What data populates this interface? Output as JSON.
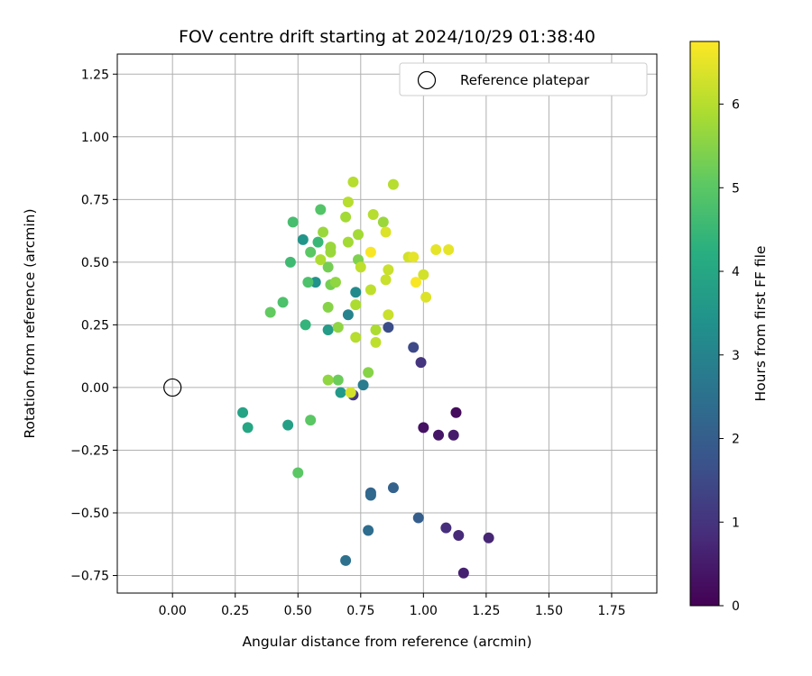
{
  "chart_data": {
    "type": "scatter",
    "title": "FOV centre drift starting at 2024/10/29 01:38:40",
    "xlabel": "Angular distance from reference (arcmin)",
    "ylabel": "Rotation from reference (arcmin)",
    "xlim": [
      -0.22,
      1.93
    ],
    "ylim": [
      -0.82,
      1.33
    ],
    "xticks": [
      0.0,
      0.25,
      0.5,
      0.75,
      1.0,
      1.25,
      1.5,
      1.75
    ],
    "xtick_labels": [
      "0.00",
      "0.25",
      "0.50",
      "0.75",
      "1.00",
      "1.25",
      "1.50",
      "1.75"
    ],
    "yticks": [
      -0.75,
      -0.5,
      -0.25,
      0.0,
      0.25,
      0.5,
      0.75,
      1.0,
      1.25
    ],
    "ytick_labels": [
      "−0.75",
      "−0.50",
      "−0.25",
      "0.00",
      "0.25",
      "0.50",
      "0.75",
      "1.00",
      "1.25"
    ],
    "grid": true,
    "legend": {
      "placement": "top-right",
      "entries": [
        "Reference platepar"
      ]
    },
    "reference_point": {
      "name": "Reference platepar",
      "x": 0.0,
      "y": 0.0
    },
    "colorbar": {
      "label": "Hours from first FF file",
      "colormap": "viridis",
      "range": [
        0,
        6.75
      ],
      "ticks": [
        0,
        1,
        2,
        3,
        4,
        5,
        6
      ],
      "tick_labels": [
        "0",
        "1",
        "2",
        "3",
        "4",
        "5",
        "6"
      ]
    },
    "series": [
      {
        "points": [
          {
            "x": 1.13,
            "y": -0.1,
            "c": 0.2
          },
          {
            "x": 1.0,
            "y": -0.16,
            "c": 0.3
          },
          {
            "x": 1.06,
            "y": -0.19,
            "c": 0.4
          },
          {
            "x": 1.12,
            "y": -0.19,
            "c": 0.5
          },
          {
            "x": 1.16,
            "y": -0.74,
            "c": 0.6
          },
          {
            "x": 1.26,
            "y": -0.6,
            "c": 0.7
          },
          {
            "x": 1.14,
            "y": -0.59,
            "c": 0.8
          },
          {
            "x": 1.09,
            "y": -0.56,
            "c": 0.9
          },
          {
            "x": 0.99,
            "y": 0.1,
            "c": 1.0
          },
          {
            "x": 0.72,
            "y": -0.03,
            "c": 1.1
          },
          {
            "x": 0.96,
            "y": 0.16,
            "c": 1.5
          },
          {
            "x": 0.86,
            "y": 0.24,
            "c": 1.6
          },
          {
            "x": 0.98,
            "y": -0.52,
            "c": 2.0
          },
          {
            "x": 0.88,
            "y": -0.4,
            "c": 2.1
          },
          {
            "x": 0.79,
            "y": -0.42,
            "c": 2.2
          },
          {
            "x": 0.79,
            "y": -0.43,
            "c": 2.3
          },
          {
            "x": 0.78,
            "y": -0.57,
            "c": 2.4
          },
          {
            "x": 0.69,
            "y": -0.69,
            "c": 2.5
          },
          {
            "x": 0.76,
            "y": 0.01,
            "c": 2.8
          },
          {
            "x": 0.7,
            "y": 0.29,
            "c": 3.0
          },
          {
            "x": 0.73,
            "y": 0.38,
            "c": 3.2
          },
          {
            "x": 0.57,
            "y": 0.42,
            "c": 3.4
          },
          {
            "x": 0.52,
            "y": 0.59,
            "c": 3.5
          },
          {
            "x": 0.67,
            "y": -0.02,
            "c": 3.6
          },
          {
            "x": 0.62,
            "y": 0.23,
            "c": 3.7
          },
          {
            "x": 0.46,
            "y": -0.15,
            "c": 3.8
          },
          {
            "x": 0.28,
            "y": -0.1,
            "c": 3.9
          },
          {
            "x": 0.3,
            "y": -0.16,
            "c": 4.0
          },
          {
            "x": 0.53,
            "y": 0.25,
            "c": 4.4
          },
          {
            "x": 0.58,
            "y": 0.58,
            "c": 4.5
          },
          {
            "x": 0.47,
            "y": 0.5,
            "c": 4.6
          },
          {
            "x": 0.48,
            "y": 0.66,
            "c": 4.7
          },
          {
            "x": 0.44,
            "y": 0.34,
            "c": 4.8
          },
          {
            "x": 0.54,
            "y": 0.42,
            "c": 4.8
          },
          {
            "x": 0.59,
            "y": 0.71,
            "c": 4.9
          },
          {
            "x": 0.55,
            "y": 0.54,
            "c": 5.0
          },
          {
            "x": 0.55,
            "y": -0.13,
            "c": 5.0
          },
          {
            "x": 0.5,
            "y": -0.34,
            "c": 5.0
          },
          {
            "x": 0.39,
            "y": 0.3,
            "c": 5.1
          },
          {
            "x": 0.66,
            "y": 0.03,
            "c": 5.2
          },
          {
            "x": 0.62,
            "y": 0.48,
            "c": 5.3
          },
          {
            "x": 0.63,
            "y": 0.41,
            "c": 5.3
          },
          {
            "x": 0.74,
            "y": 0.51,
            "c": 5.4
          },
          {
            "x": 0.78,
            "y": 0.06,
            "c": 5.5
          },
          {
            "x": 0.62,
            "y": 0.32,
            "c": 5.5
          },
          {
            "x": 0.66,
            "y": 0.24,
            "c": 5.6
          },
          {
            "x": 0.62,
            "y": 0.03,
            "c": 5.6
          },
          {
            "x": 0.65,
            "y": 0.42,
            "c": 5.6
          },
          {
            "x": 0.63,
            "y": 0.54,
            "c": 5.7
          },
          {
            "x": 0.63,
            "y": 0.56,
            "c": 5.7
          },
          {
            "x": 0.6,
            "y": 0.62,
            "c": 5.7
          },
          {
            "x": 0.69,
            "y": 0.68,
            "c": 5.8
          },
          {
            "x": 0.84,
            "y": 0.66,
            "c": 5.7
          },
          {
            "x": 0.7,
            "y": 0.58,
            "c": 5.8
          },
          {
            "x": 0.74,
            "y": 0.61,
            "c": 5.8
          },
          {
            "x": 0.59,
            "y": 0.51,
            "c": 5.9
          },
          {
            "x": 0.73,
            "y": 0.33,
            "c": 5.9
          },
          {
            "x": 0.81,
            "y": 0.23,
            "c": 5.9
          },
          {
            "x": 0.73,
            "y": 0.2,
            "c": 6.0
          },
          {
            "x": 0.7,
            "y": 0.74,
            "c": 6.0
          },
          {
            "x": 0.72,
            "y": 0.82,
            "c": 6.0
          },
          {
            "x": 0.8,
            "y": 0.69,
            "c": 6.0
          },
          {
            "x": 0.88,
            "y": 0.81,
            "c": 6.0
          },
          {
            "x": 0.75,
            "y": 0.48,
            "c": 6.1
          },
          {
            "x": 0.79,
            "y": 0.39,
            "c": 6.1
          },
          {
            "x": 0.81,
            "y": 0.18,
            "c": 6.1
          },
          {
            "x": 0.85,
            "y": 0.43,
            "c": 6.2
          },
          {
            "x": 0.86,
            "y": 0.29,
            "c": 6.2
          },
          {
            "x": 0.86,
            "y": 0.47,
            "c": 6.2
          },
          {
            "x": 0.71,
            "y": -0.02,
            "c": 6.3
          },
          {
            "x": 1.0,
            "y": 0.45,
            "c": 6.3
          },
          {
            "x": 0.94,
            "y": 0.52,
            "c": 6.3
          },
          {
            "x": 1.01,
            "y": 0.36,
            "c": 6.4
          },
          {
            "x": 0.85,
            "y": 0.62,
            "c": 6.4
          },
          {
            "x": 0.96,
            "y": 0.52,
            "c": 6.5
          },
          {
            "x": 1.05,
            "y": 0.55,
            "c": 6.5
          },
          {
            "x": 1.1,
            "y": 0.55,
            "c": 6.5
          },
          {
            "x": 0.79,
            "y": 0.54,
            "c": 6.7
          },
          {
            "x": 0.97,
            "y": 0.42,
            "c": 6.7
          }
        ]
      }
    ]
  }
}
